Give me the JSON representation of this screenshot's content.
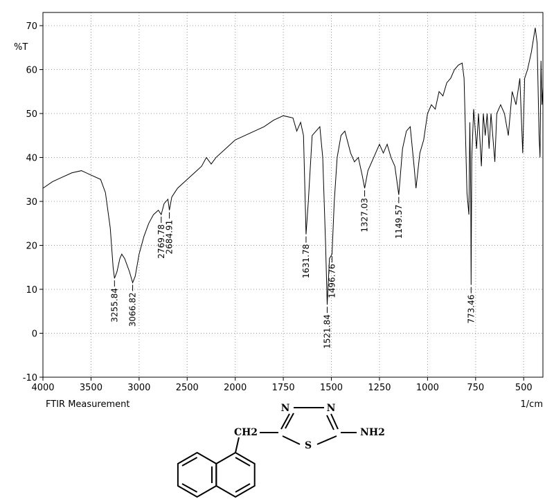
{
  "chart_data": {
    "type": "line",
    "y_label": "%T",
    "x_label": "1/cm",
    "caption": "FTIR Measurement",
    "xlim": [
      4000,
      400
    ],
    "x_break": 2000,
    "x_break_factor": 2,
    "ylim": [
      -10,
      73
    ],
    "xticks": [
      4000,
      3500,
      3000,
      2500,
      2000,
      1750,
      1500,
      1250,
      1000,
      750,
      500
    ],
    "yticks": [
      -10,
      0,
      10,
      20,
      30,
      40,
      50,
      60,
      70
    ],
    "grid": true,
    "series": [
      {
        "color": "#000000",
        "x": [
          4000,
          3900,
          3800,
          3700,
          3600,
          3500,
          3400,
          3350,
          3300,
          3270,
          3255.84,
          3230,
          3200,
          3180,
          3150,
          3100,
          3066.82,
          3040,
          3000,
          2950,
          2900,
          2850,
          2800,
          2769.78,
          2740,
          2700,
          2684.91,
          2660,
          2600,
          2500,
          2400,
          2350,
          2300,
          2250,
          2200,
          2100,
          2000,
          1950,
          1900,
          1850,
          1800,
          1750,
          1700,
          1680,
          1660,
          1645,
          1631.78,
          1620,
          1600,
          1580,
          1560,
          1545,
          1530,
          1521.84,
          1510,
          1496.76,
          1485,
          1470,
          1450,
          1430,
          1400,
          1380,
          1360,
          1340,
          1327.03,
          1310,
          1280,
          1250,
          1230,
          1210,
          1190,
          1170,
          1149.57,
          1130,
          1110,
          1090,
          1070,
          1060,
          1040,
          1020,
          1000,
          980,
          960,
          940,
          920,
          900,
          880,
          860,
          840,
          820,
          810,
          795,
          785,
          780,
          775,
          773.46,
          770,
          760,
          745,
          735,
          720,
          710,
          700,
          690,
          680,
          670,
          650,
          640,
          620,
          600,
          580,
          560,
          540,
          520,
          505,
          495,
          480,
          460,
          440,
          430,
          420,
          415,
          410,
          405,
          400
        ],
        "values": [
          33,
          34.5,
          35.5,
          36.5,
          37,
          36,
          35,
          32,
          24,
          15,
          12.5,
          14,
          17,
          18,
          17,
          14,
          11.5,
          13,
          18,
          22,
          25,
          27,
          28,
          27,
          29.5,
          30.5,
          28,
          31,
          33,
          35,
          37,
          38,
          40,
          38.5,
          40,
          42,
          44,
          45,
          46,
          47,
          48.5,
          49.5,
          49,
          46,
          48,
          45,
          22.5,
          30,
          45,
          46,
          47,
          40,
          20,
          6.5,
          17,
          18,
          30,
          40,
          45,
          46,
          41,
          39,
          40,
          36,
          33,
          37,
          40,
          43,
          41,
          43,
          40,
          38,
          31.5,
          42,
          46,
          47,
          38,
          33,
          41,
          44,
          50,
          52,
          51,
          55,
          54,
          57,
          58,
          60,
          61,
          61.5,
          58,
          32,
          27,
          48,
          30,
          11,
          40,
          51,
          42,
          50,
          38,
          50,
          45,
          50,
          42,
          50,
          39,
          50,
          52,
          50,
          45,
          55,
          52,
          58,
          41,
          58,
          60,
          64,
          69.5,
          66,
          45,
          40,
          62,
          52,
          56
        ]
      }
    ],
    "peaks": [
      3255.84,
      3066.82,
      2769.78,
      2684.91,
      1631.78,
      1521.84,
      1496.76,
      1327.03,
      1149.57,
      773.46
    ],
    "peak_values": [
      12.5,
      11.5,
      27,
      28,
      22.5,
      6.5,
      18,
      33,
      31.5,
      11
    ]
  },
  "molecule": {
    "atoms": [
      "N",
      "N",
      "CH2",
      "S",
      "NH2"
    ]
  }
}
